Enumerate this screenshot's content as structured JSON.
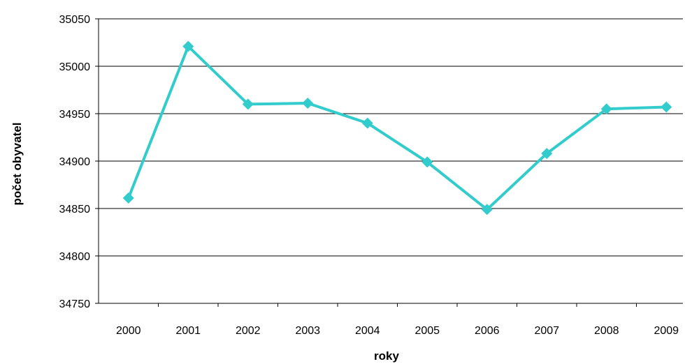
{
  "chart_data": {
    "type": "line",
    "title": "",
    "xlabel": "roky",
    "ylabel": "počet obyvatel",
    "categories": [
      "2000",
      "2001",
      "2002",
      "2003",
      "2004",
      "2005",
      "2006",
      "2007",
      "2008",
      "2009"
    ],
    "series": [
      {
        "values": [
          34861,
          35021,
          34960,
          34961,
          34940,
          34899,
          34849,
          34908,
          34955,
          34957
        ],
        "color": "#33CCCC",
        "marker": "diamond"
      }
    ],
    "ylim": [
      34750,
      35050
    ],
    "yticks": [
      34750,
      34800,
      34850,
      34900,
      34950,
      35000,
      35050
    ],
    "grid": true,
    "legend": "none"
  }
}
